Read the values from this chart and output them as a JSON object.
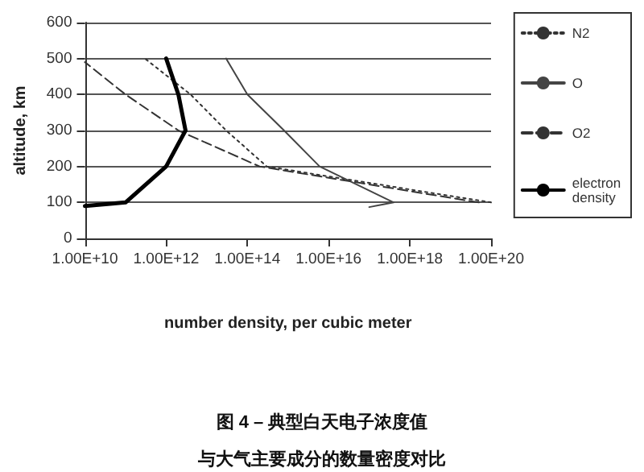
{
  "chart_data": {
    "type": "line",
    "title": "图 4 – 典型白天电子浓度值",
    "subtitle": "与大气主要成分的数量密度对比",
    "xlabel": "number density, per cubic meter",
    "ylabel": "altitude, km",
    "log": "x",
    "grid": "y",
    "legend": "right",
    "marker": "none",
    "xlim": [
      10000000000.0,
      1e+20
    ],
    "xticks": [
      {
        "value": 10000000000.0,
        "label": "1.00E+10"
      },
      {
        "value": 1000000000000.0,
        "label": "1.00E+12"
      },
      {
        "value": 100000000000000.0,
        "label": "1.00E+14"
      },
      {
        "value": 1e+16,
        "label": "1.00E+16"
      },
      {
        "value": 1e+18,
        "label": "1.00E+18"
      },
      {
        "value": 1e+20,
        "label": "1.00E+20"
      }
    ],
    "ylim": [
      0,
      600
    ],
    "yticks": [
      0,
      100,
      200,
      300,
      400,
      500,
      600
    ],
    "series": [
      {
        "name": "N2",
        "color": "#333333",
        "line_style": "dotted",
        "x": [
          1e+20,
          300000000000000.0,
          30000000000000.0,
          4000000000000.0,
          300000000000.0
        ],
        "values": [
          100,
          200,
          300,
          400,
          500
        ]
      },
      {
        "name": "O",
        "color": "#444444",
        "line_style": "solid",
        "x": [
          1e+17,
          4e+17,
          6000000000000000.0,
          800000000000000.0,
          100000000000000.0,
          30000000000000.0
        ],
        "values": [
          87,
          100,
          200,
          300,
          400,
          500
        ]
      },
      {
        "name": "O2",
        "color": "#333333",
        "line_style": "dashed",
        "x": [
          5e+19,
          200000000000000.0,
          2000000000000.0,
          100000000000.0,
          10000000000.0
        ],
        "values": [
          100,
          200,
          300,
          400,
          490
        ]
      },
      {
        "name": "electron density",
        "color": "#000000",
        "line_style": "solid",
        "x": [
          10000000000.0,
          100000000000.0,
          1000000000000.0,
          3000000000000.0,
          2000000000000.0,
          1000000000000.0
        ],
        "values": [
          90,
          100,
          200,
          300,
          400,
          500
        ]
      }
    ]
  }
}
